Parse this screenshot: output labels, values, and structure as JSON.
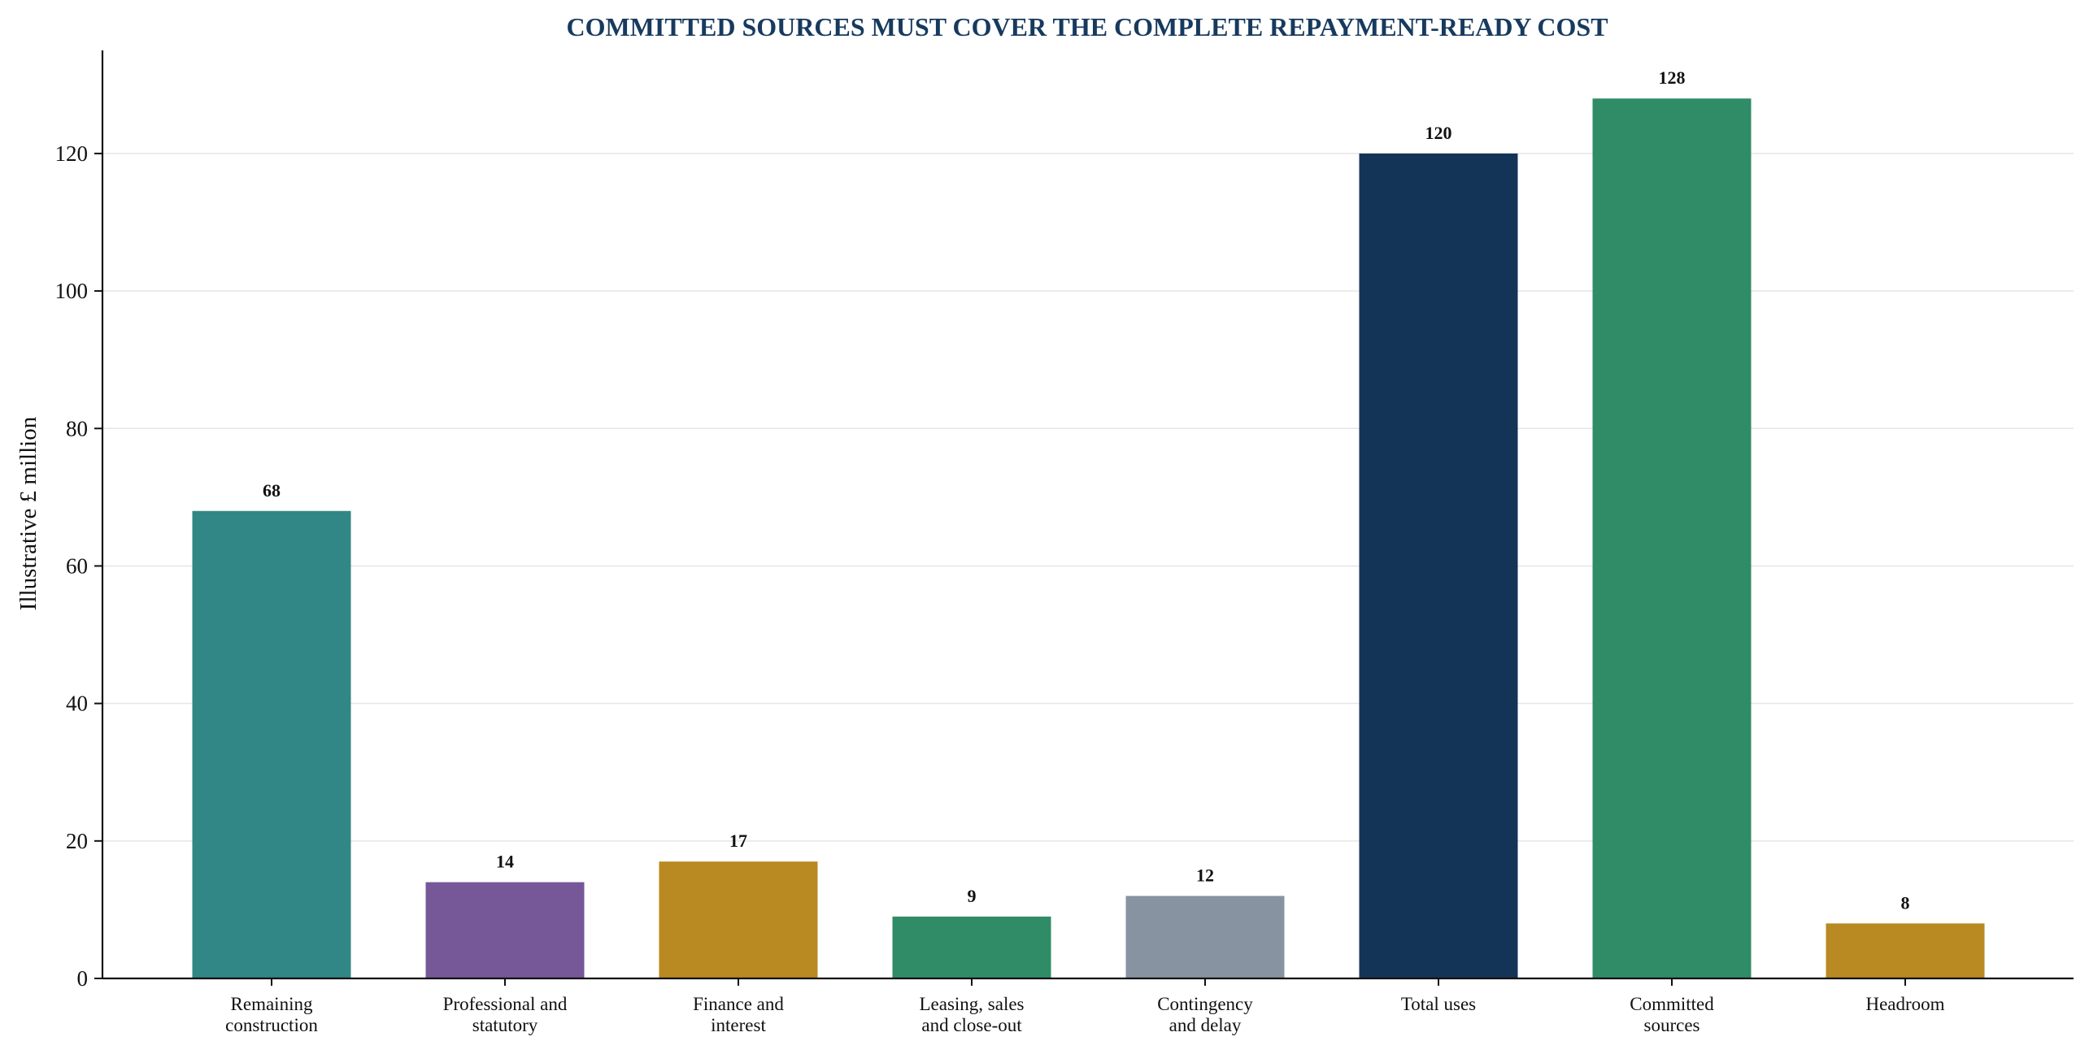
{
  "chart_data": {
    "type": "bar",
    "title": "COMMITTED SOURCES MUST COVER THE COMPLETE REPAYMENT-READY COST",
    "xlabel": "",
    "ylabel": "Illustrative £ million",
    "ylim": [
      0,
      135
    ],
    "yticks": [
      0,
      20,
      40,
      60,
      80,
      100,
      120
    ],
    "grid": "horizontal",
    "legend": "none",
    "categories": [
      [
        "Remaining",
        "construction"
      ],
      [
        "Professional and",
        "statutory"
      ],
      [
        "Finance and",
        "interest"
      ],
      [
        "Leasing, sales",
        "and close-out"
      ],
      [
        "Contingency",
        "and delay"
      ],
      [
        "Total uses"
      ],
      [
        "Committed",
        "sources"
      ],
      [
        "Headroom"
      ]
    ],
    "values": [
      68,
      14,
      17,
      9,
      12,
      120,
      128,
      8
    ],
    "value_labels": [
      "68",
      "14",
      "17",
      "9",
      "12",
      "120",
      "128",
      "8"
    ],
    "colors": [
      "#318785",
      "#765898",
      "#b88a21",
      "#2f8c67",
      "#8893a2",
      "#143457",
      "#2f8c67",
      "#b88a21"
    ]
  },
  "style": {
    "title_color": "#173a5e",
    "axis_color": "#111111",
    "grid_color": "#e6e6e6"
  }
}
